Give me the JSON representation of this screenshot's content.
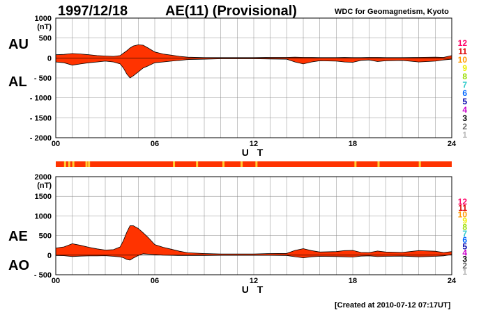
{
  "header": {
    "date": "1997/12/18",
    "title": "AE(11) (Provisional)",
    "source": "WDC for Geomagnetism, Kyoto"
  },
  "footer": "[Created at 2010-07-12 07:17UT]",
  "colors": {
    "fill": "#ff3300",
    "line": "#000000",
    "grid": "#888888",
    "qual_main": "#ff3300",
    "qual_minor": "#ffcc33"
  },
  "legend": {
    "labels": [
      "12",
      "11",
      "10",
      "9",
      "8",
      "7",
      "6",
      "5",
      "4",
      "3",
      "2",
      "1"
    ],
    "colors": [
      "#ff0066",
      "#dd0000",
      "#ff9900",
      "#eeee00",
      "#99dd00",
      "#33cccc",
      "#0066ff",
      "#0000aa",
      "#cc00cc",
      "#000000",
      "#666666",
      "#bbbbbb"
    ]
  },
  "quality_bar": {
    "marks_hours": [
      0.5,
      0.75,
      1.0,
      1.8,
      1.95,
      7.1,
      8.5,
      10.1,
      11.2,
      12.1,
      18.1,
      19.5,
      22.0
    ]
  },
  "chart_data": [
    {
      "type": "area",
      "name": "AU-AL",
      "upper_label": "AU",
      "lower_label": "AL",
      "unit": "(nT)",
      "xlabel": "U T",
      "xlim": [
        0,
        24
      ],
      "ylim": [
        -2000,
        1000
      ],
      "yticks": [
        1000,
        500,
        0,
        -500,
        -1000,
        -1500,
        -2000
      ],
      "yticklabels": [
        "1000",
        "500",
        "0",
        "- 500",
        "- 1000",
        "- 1500",
        "- 2000"
      ],
      "xticks": [
        0,
        6,
        12,
        18,
        24
      ],
      "xticklabels": [
        "00",
        "06",
        "12",
        "18",
        "24"
      ],
      "x": [
        0,
        0.5,
        1,
        1.5,
        2,
        2.5,
        3,
        3.5,
        3.9,
        4.1,
        4.3,
        4.5,
        4.7,
        5.0,
        5.3,
        5.6,
        6,
        6.5,
        7,
        7.5,
        8,
        9,
        10,
        11,
        12,
        13,
        14,
        14.5,
        15,
        15.5,
        16,
        17,
        17.5,
        18,
        18.5,
        19,
        19.5,
        20,
        21,
        22,
        23,
        23.5,
        24
      ],
      "series": [
        {
          "name": "AU",
          "values": [
            80,
            90,
            110,
            100,
            80,
            60,
            50,
            40,
            60,
            120,
            180,
            250,
            300,
            330,
            320,
            250,
            150,
            100,
            70,
            40,
            20,
            10,
            10,
            10,
            10,
            15,
            15,
            20,
            15,
            15,
            10,
            10,
            15,
            10,
            10,
            15,
            15,
            10,
            10,
            15,
            20,
            15,
            60
          ]
        },
        {
          "name": "AL",
          "values": [
            -100,
            -120,
            -180,
            -150,
            -120,
            -100,
            -80,
            -100,
            -150,
            -250,
            -400,
            -500,
            -450,
            -350,
            -250,
            -200,
            -120,
            -100,
            -80,
            -60,
            -40,
            -30,
            -20,
            -20,
            -20,
            -25,
            -30,
            -100,
            -150,
            -100,
            -70,
            -80,
            -100,
            -110,
            -60,
            -50,
            -90,
            -70,
            -60,
            -100,
            -80,
            -50,
            -30
          ]
        }
      ]
    },
    {
      "type": "area",
      "name": "AE-AO",
      "upper_label": "AE",
      "lower_label": "AO",
      "unit": "(nT)",
      "xlabel": "U T",
      "xlim": [
        0,
        24
      ],
      "ylim": [
        -500,
        2000
      ],
      "yticks": [
        2000,
        1500,
        1000,
        500,
        0,
        -500
      ],
      "yticklabels": [
        "2000",
        "1500",
        "1000",
        "500",
        "0",
        "- 500"
      ],
      "xticks": [
        0,
        6,
        12,
        18,
        24
      ],
      "xticklabels": [
        "00",
        "06",
        "12",
        "18",
        "24"
      ],
      "x": [
        0,
        0.5,
        1,
        1.5,
        2,
        2.5,
        3,
        3.5,
        3.9,
        4.1,
        4.3,
        4.5,
        4.7,
        5.0,
        5.3,
        5.6,
        6,
        6.5,
        7,
        7.5,
        8,
        9,
        10,
        11,
        12,
        13,
        14,
        14.5,
        15,
        15.5,
        16,
        17,
        17.5,
        18,
        18.5,
        19,
        19.5,
        20,
        21,
        22,
        23,
        23.5,
        24
      ],
      "series": [
        {
          "name": "AE",
          "values": [
            180,
            210,
            290,
            250,
            200,
            160,
            130,
            140,
            210,
            370,
            580,
            750,
            750,
            680,
            570,
            450,
            270,
            200,
            150,
            100,
            60,
            40,
            30,
            30,
            30,
            40,
            45,
            120,
            165,
            115,
            80,
            90,
            115,
            120,
            70,
            65,
            105,
            80,
            70,
            115,
            100,
            65,
            90
          ]
        },
        {
          "name": "AO",
          "values": [
            -10,
            -15,
            -35,
            -25,
            -20,
            -20,
            -15,
            -30,
            -45,
            -65,
            -110,
            -125,
            -75,
            -10,
            35,
            25,
            15,
            0,
            -5,
            -10,
            -10,
            -10,
            -5,
            -5,
            -5,
            -5,
            -8,
            -40,
            -68,
            -43,
            -30,
            -35,
            -43,
            -50,
            -25,
            -18,
            -38,
            -30,
            -25,
            -43,
            -30,
            -18,
            15
          ]
        }
      ]
    }
  ]
}
